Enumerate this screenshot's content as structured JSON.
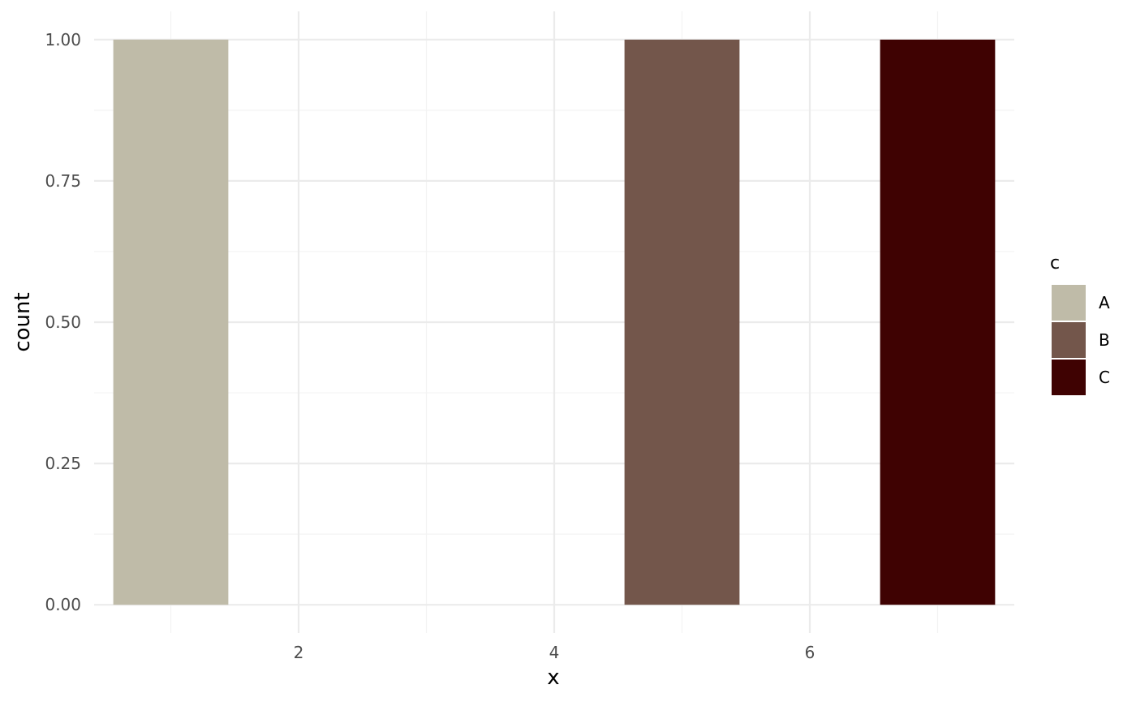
{
  "chart_data": {
    "type": "bar",
    "xlabel": "x",
    "ylabel": "count",
    "xlim": [
      0.4,
      7.6
    ],
    "ylim": [
      -0.05,
      1.05
    ],
    "x_ticks": [
      2,
      4,
      6
    ],
    "x_tick_labels": [
      "2",
      "4",
      "6"
    ],
    "x_minor_ticks": [
      1,
      3,
      5,
      7
    ],
    "y_ticks": [
      0,
      0.25,
      0.5,
      0.75,
      1
    ],
    "y_tick_labels": [
      "0.00",
      "0.25",
      "0.50",
      "0.75",
      "1.00"
    ],
    "y_minor_ticks": [
      0.125,
      0.375,
      0.625,
      0.875
    ],
    "bar_width": 0.9,
    "bars": [
      {
        "x": 1,
        "value": 1,
        "group": "A"
      },
      {
        "x": 5,
        "value": 1,
        "group": "B"
      },
      {
        "x": 7,
        "value": 1,
        "group": "C"
      }
    ],
    "legend": {
      "title": "c",
      "position": "right",
      "entries": [
        {
          "label": "A",
          "color": "#BFBBA8"
        },
        {
          "label": "B",
          "color": "#73564B"
        },
        {
          "label": "C",
          "color": "#3F0202"
        }
      ]
    },
    "grid": true,
    "colors": {
      "grid_major": "#EBEBEB",
      "grid_minor": "#F3F3F3",
      "background": "#FFFFFF"
    }
  }
}
